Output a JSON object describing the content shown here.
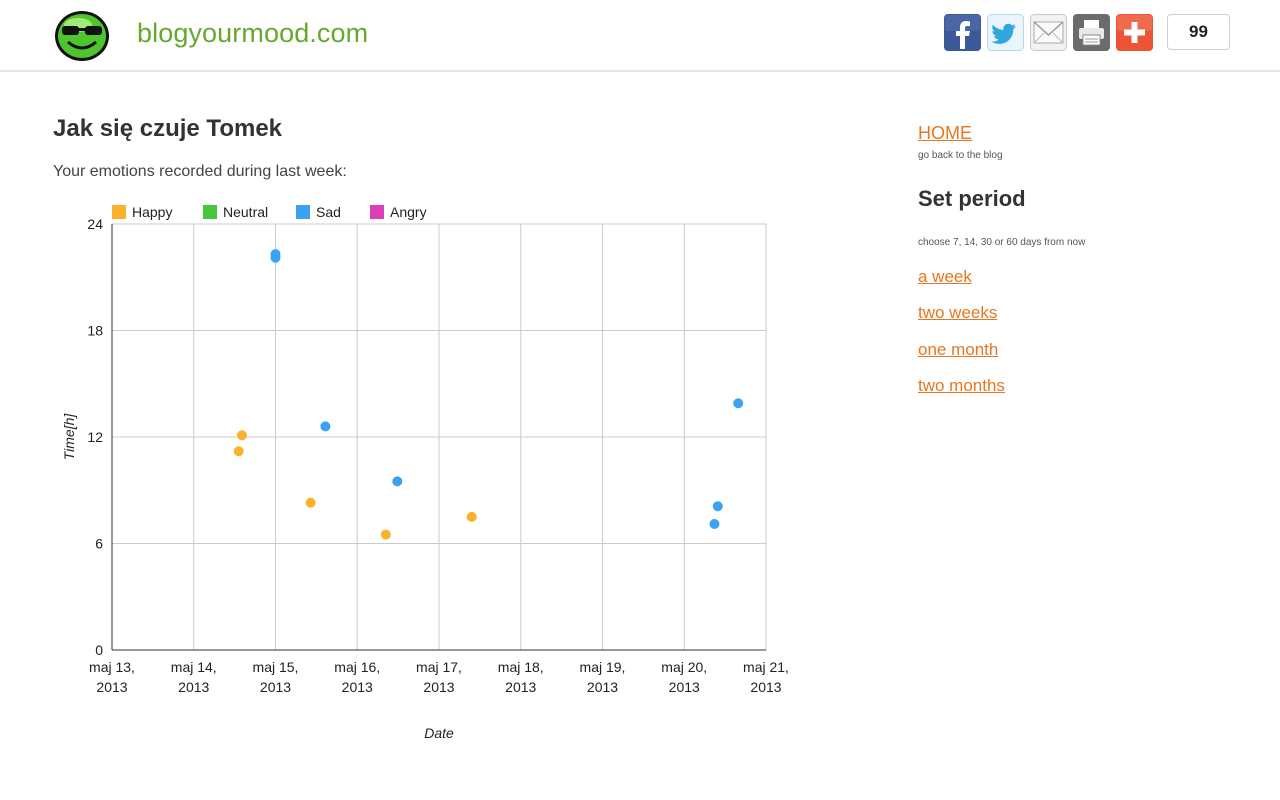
{
  "header": {
    "site_title": "blogyourmood.com",
    "share_count": "99",
    "share_buttons": [
      {
        "icon": "facebook-icon",
        "color": "#3b5998"
      },
      {
        "icon": "twitter-icon",
        "color": "#2fa7de"
      },
      {
        "icon": "email-icon",
        "color": "#c8c8c8"
      },
      {
        "icon": "print-icon",
        "color": "#666666"
      },
      {
        "icon": "plus-icon",
        "color": "#ec5435"
      }
    ]
  },
  "main": {
    "title": "Jak się czuje Tomek",
    "subtitle": "Your emotions recorded during last week:"
  },
  "sidebar": {
    "home_label": "HOME",
    "home_sub": "go back to the blog",
    "period_title": "Set period",
    "period_sub": "choose 7, 14, 30 or 60 days from now",
    "period_links": [
      "a week",
      "two weeks",
      "one month",
      "two months"
    ]
  },
  "chart_data": {
    "type": "scatter",
    "xlabel": "Date",
    "ylabel": "Time[h]",
    "ylim": [
      0,
      24
    ],
    "yticks": [
      0,
      6,
      12,
      18,
      24
    ],
    "xlim": [
      "2013-05-13",
      "2013-05-21"
    ],
    "xticks": [
      [
        "maj 13,",
        "2013"
      ],
      [
        "maj 14,",
        "2013"
      ],
      [
        "maj 15,",
        "2013"
      ],
      [
        "maj 16,",
        "2013"
      ],
      [
        "maj 17,",
        "2013"
      ],
      [
        "maj 18,",
        "2013"
      ],
      [
        "maj 19,",
        "2013"
      ],
      [
        "maj 20,",
        "2013"
      ],
      [
        "maj 21,",
        "2013"
      ]
    ],
    "grid": true,
    "legend_position": "top-left",
    "series": [
      {
        "name": "Happy",
        "color": "#fbb12c",
        "points": [
          [
            1.55,
            11.2
          ],
          [
            1.59,
            12.1
          ],
          [
            2.43,
            8.3
          ],
          [
            3.35,
            6.5
          ],
          [
            4.4,
            7.5
          ]
        ]
      },
      {
        "name": "Neutral",
        "color": "#44c73d",
        "points": []
      },
      {
        "name": "Sad",
        "color": "#3aa2f1",
        "points": [
          [
            2.0,
            22.1
          ],
          [
            2.0,
            22.3
          ],
          [
            2.61,
            12.6
          ],
          [
            3.49,
            9.5
          ],
          [
            7.37,
            7.1
          ],
          [
            7.41,
            8.1
          ],
          [
            7.66,
            13.9
          ]
        ]
      },
      {
        "name": "Angry",
        "color": "#dd3fb6",
        "points": []
      }
    ]
  }
}
